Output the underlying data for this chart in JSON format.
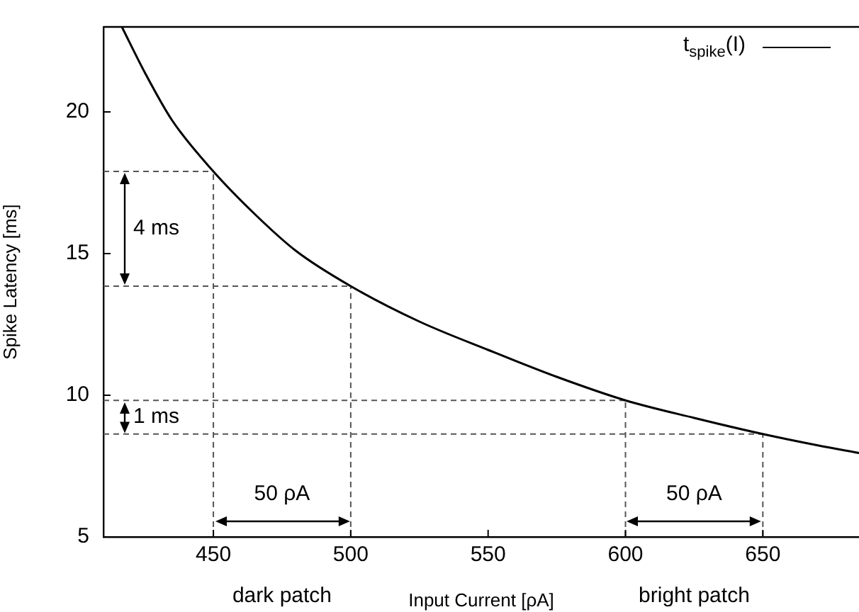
{
  "chart_data": {
    "type": "line",
    "xlabel": "Input Current [ρA]",
    "ylabel": "Spike Latency [ms]",
    "xlim": [
      410,
      685
    ],
    "ylim": [
      5,
      23
    ],
    "xticks": [
      450,
      500,
      550,
      600,
      650
    ],
    "yticks": [
      5,
      10,
      15,
      20
    ],
    "grid": false,
    "legend": "top right",
    "marker": "none",
    "line_style": "solid",
    "series": [
      {
        "name": "t$_{spike}$(I)",
        "color": "#000000",
        "x": [
          416.7,
          425,
          435,
          450,
          465,
          480,
          500,
          525,
          550,
          575,
          600,
          625,
          650,
          670,
          685
        ],
        "values": [
          23.0,
          21.4,
          19.7,
          17.9,
          16.4,
          15.1,
          13.85,
          12.6,
          11.6,
          10.65,
          9.82,
          9.2,
          8.63,
          8.23,
          7.96
        ]
      }
    ],
    "ref_lines": [
      {
        "axis": "x",
        "value": 450,
        "color": "#555555",
        "line_style": "dashed"
      },
      {
        "axis": "x",
        "value": 500,
        "color": "#555555",
        "line_style": "dashed"
      },
      {
        "axis": "x",
        "value": 600,
        "color": "#555555",
        "line_style": "dashed"
      },
      {
        "axis": "x",
        "value": 650,
        "color": "#555555",
        "line_style": "dashed"
      },
      {
        "axis": "y",
        "value": 17.9,
        "color": "#555555",
        "line_style": "dashed"
      },
      {
        "axis": "y",
        "value": 13.85,
        "color": "#555555",
        "line_style": "dashed"
      },
      {
        "axis": "y",
        "value": 9.82,
        "color": "#555555",
        "line_style": "dashed"
      },
      {
        "axis": "y",
        "value": 8.63,
        "color": "#555555",
        "line_style": "dashed"
      }
    ],
    "annotations": [
      "4 ms",
      "1 ms",
      "50 ρA",
      "50 ρA",
      "dark patch",
      "bright patch"
    ]
  }
}
